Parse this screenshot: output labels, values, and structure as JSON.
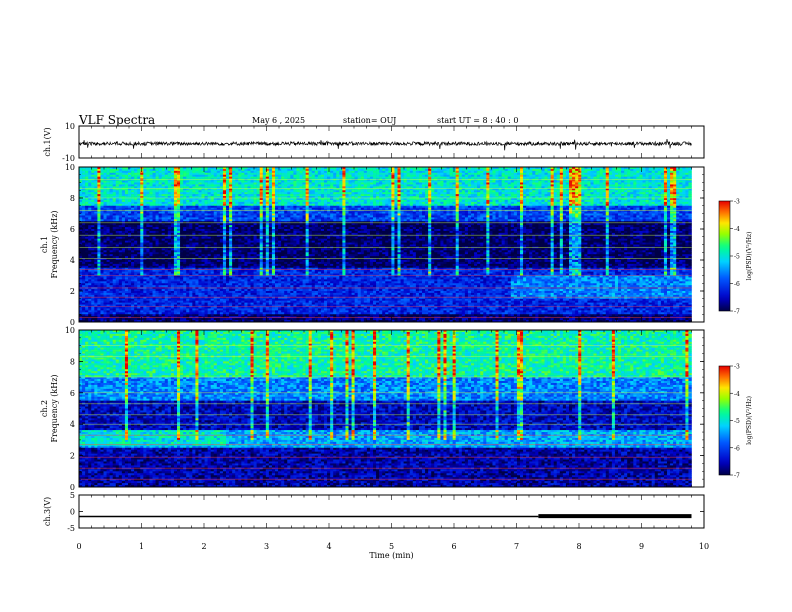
{
  "header": {
    "title": "VLF Spectra",
    "date": "May 6  , 2025",
    "station": "station= OUJ",
    "start": "start  UT =   8 : 40 : 0"
  },
  "colorbar": {
    "label": "log(PSD)(V²/Hz)",
    "ticks": [
      "-3",
      "-4",
      "-5",
      "-6",
      "-7"
    ],
    "range": [
      -7,
      -3
    ],
    "colors": [
      "#000060",
      "#0000ff",
      "#00c8ff",
      "#00ff80",
      "#c8ff00",
      "#ff8000",
      "#ff0000",
      "#ffffff"
    ]
  },
  "chart_data": [
    {
      "type": "line",
      "ylabel": "ch.1(V)",
      "ylim": [
        -10,
        10
      ],
      "yticks": [
        "10",
        "-10"
      ],
      "description_of_signal": "noisy trace centered near -1 V",
      "x": [
        0,
        1,
        2,
        3,
        4,
        5,
        6,
        7,
        8,
        9,
        9.8
      ],
      "y": [
        -1,
        -1,
        -1,
        -1,
        -1,
        -1,
        -1,
        -1,
        -1,
        -1,
        -1
      ]
    },
    {
      "type": "heatmap",
      "ylabel": "ch.1 Frequency (kHz)",
      "ylim": [
        0,
        10
      ],
      "yticks": [
        "0",
        "2",
        "4",
        "6",
        "8",
        "10"
      ],
      "xlim": [
        0,
        10
      ],
      "band_levels_by_kHz": [
        {
          "f": [
            0,
            0.5
          ],
          "level": -6.8
        },
        {
          "f": [
            0.5,
            3.5
          ],
          "level": -6.2
        },
        {
          "f": [
            3.5,
            6.5
          ],
          "level": -6.9
        },
        {
          "f": [
            6.5,
            7.5
          ],
          "level": -6.0
        },
        {
          "f": [
            7.5,
            10
          ],
          "level": -5.0
        }
      ],
      "horizontal_lines_kHz": [
        0.3,
        1.0,
        1.6,
        2.2,
        3.0,
        3.4,
        4.1,
        4.8,
        5.6,
        6.4,
        7.2,
        8.0,
        8.6,
        9.2
      ]
    },
    {
      "type": "heatmap",
      "ylabel": "ch.2 Frequency (kHz)",
      "ylim": [
        0,
        10
      ],
      "yticks": [
        "0",
        "2",
        "4",
        "6",
        "8",
        "10"
      ],
      "xlim": [
        0,
        10
      ],
      "band_levels_by_kHz": [
        {
          "f": [
            0,
            2.5
          ],
          "level": -6.6
        },
        {
          "f": [
            2.5,
            3.6
          ],
          "level": -5.4
        },
        {
          "f": [
            3.6,
            5.5
          ],
          "level": -6.5
        },
        {
          "f": [
            5.5,
            7.0
          ],
          "level": -5.6
        },
        {
          "f": [
            7.0,
            10
          ],
          "level": -4.8
        }
      ],
      "horizontal_lines_kHz": [
        0.5,
        1.2,
        1.9,
        2.7,
        3.3,
        4.0,
        4.6,
        5.3,
        6.0,
        7.0,
        8.3,
        9.0
      ]
    },
    {
      "type": "line",
      "ylabel": "ch.3(V)",
      "ylim": [
        -5,
        5
      ],
      "yticks": [
        "5",
        "0",
        "-5"
      ],
      "xlabel": "Time  (min)",
      "xlim": [
        0,
        10
      ],
      "xticks": [
        "0",
        "1",
        "2",
        "3",
        "4",
        "5",
        "6",
        "7",
        "8",
        "9",
        "10"
      ],
      "x": [
        0,
        7.35,
        7.35,
        9.8
      ],
      "y": [
        -1.5,
        -1.5,
        -1.4,
        -1.4
      ]
    }
  ]
}
